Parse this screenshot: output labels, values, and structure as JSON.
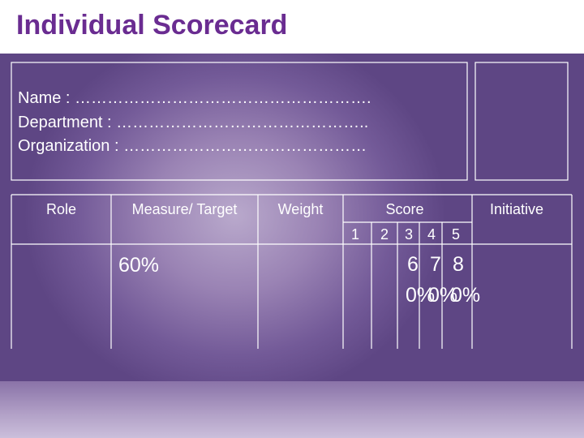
{
  "title": "Individual Scorecard",
  "info": {
    "name": "Name : ……………………………………………….",
    "department": "Department : ………………………………………..",
    "organization": "Organization : ………………………………………"
  },
  "table": {
    "headers": [
      "Role",
      "Measure/ Target",
      "Weight",
      "Score",
      "Initiative"
    ],
    "score_levels": [
      "1",
      "2",
      "3",
      "4",
      "5"
    ],
    "row": {
      "measure_target": "60%",
      "score_3": "60%",
      "score_4": "70%",
      "score_5": "80%"
    }
  }
}
